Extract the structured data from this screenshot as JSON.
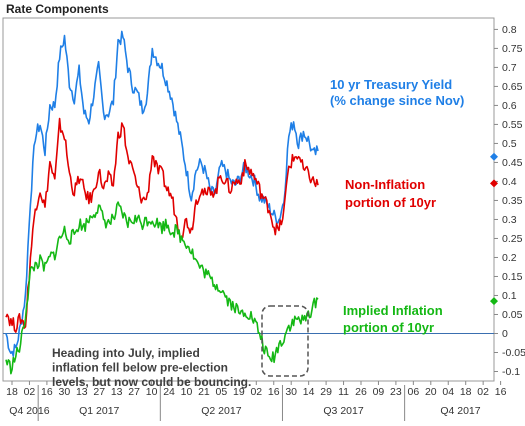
{
  "chart_data": {
    "type": "line",
    "title": "Rate Components",
    "y_ticks": [
      "0.8",
      "0.75",
      "0.7",
      "0.65",
      "0.6",
      "0.55",
      "0.5",
      "0.45",
      "0.4",
      "0.35",
      "0.3",
      "0.25",
      "0.2",
      "0.15",
      "0.1",
      "0.05",
      "0",
      "-0.05",
      "-0.1"
    ],
    "ylim": [
      -0.125,
      0.83
    ],
    "x_ticks": [
      "18",
      "02",
      "16",
      "30",
      "13",
      "27",
      "13",
      "27",
      "10",
      "24",
      "10",
      "21",
      "05",
      "19",
      "02",
      "16",
      "30",
      "14",
      "29",
      "11",
      "26",
      "09",
      "23",
      "06",
      "20",
      "04",
      "18",
      "02",
      "16"
    ],
    "periods": [
      "Q4 2016",
      "Q1 2017",
      "Q2 2017",
      "Q3 2017",
      "Q4 2017"
    ],
    "zero_line": 0,
    "series": [
      {
        "name": "10 yr Treasury Yield",
        "color": "#1f7fe6",
        "end_value": 0.465,
        "values": [
          0.0,
          -0.05,
          -0.04,
          0.02,
          0.1,
          0.35,
          0.52,
          0.55,
          0.48,
          0.6,
          0.6,
          0.73,
          0.78,
          0.66,
          0.62,
          0.69,
          0.58,
          0.56,
          0.63,
          0.7,
          0.58,
          0.58,
          0.61,
          0.77,
          0.78,
          0.7,
          0.65,
          0.63,
          0.59,
          0.63,
          0.75,
          0.72,
          0.7,
          0.66,
          0.62,
          0.56,
          0.5,
          0.43,
          0.36,
          0.43,
          0.45,
          0.42,
          0.37,
          0.37,
          0.44,
          0.43,
          0.4,
          0.39,
          0.41,
          0.44,
          0.42,
          0.4,
          0.36,
          0.35,
          0.33,
          0.31,
          0.3,
          0.35,
          0.52,
          0.56,
          0.5,
          0.53,
          0.51,
          0.47,
          0.48
        ]
      },
      {
        "name": "Non-Inflation portion of 10yr",
        "color": "#e00000",
        "end_value": 0.395,
        "values": [
          0.06,
          0.03,
          0.02,
          0.04,
          0.02,
          0.2,
          0.33,
          0.38,
          0.33,
          0.45,
          0.4,
          0.55,
          0.52,
          0.42,
          0.37,
          0.41,
          0.38,
          0.35,
          0.37,
          0.43,
          0.38,
          0.41,
          0.39,
          0.52,
          0.55,
          0.46,
          0.43,
          0.38,
          0.35,
          0.36,
          0.47,
          0.43,
          0.42,
          0.38,
          0.36,
          0.3,
          0.26,
          0.3,
          0.27,
          0.35,
          0.38,
          0.36,
          0.38,
          0.37,
          0.42,
          0.4,
          0.38,
          0.4,
          0.4,
          0.44,
          0.43,
          0.41,
          0.38,
          0.35,
          0.33,
          0.28,
          0.27,
          0.32,
          0.44,
          0.46,
          0.47,
          0.43,
          0.42,
          0.4,
          0.39
        ]
      },
      {
        "name": "Implied Inflation portion of 10yr",
        "color": "#14b814",
        "end_value": 0.085,
        "values": [
          -0.07,
          -0.09,
          -0.06,
          -0.03,
          0.05,
          0.16,
          0.18,
          0.19,
          0.17,
          0.2,
          0.21,
          0.25,
          0.27,
          0.25,
          0.26,
          0.29,
          0.28,
          0.3,
          0.32,
          0.33,
          0.3,
          0.29,
          0.3,
          0.33,
          0.31,
          0.29,
          0.3,
          0.3,
          0.29,
          0.3,
          0.3,
          0.29,
          0.28,
          0.29,
          0.27,
          0.27,
          0.25,
          0.24,
          0.22,
          0.19,
          0.17,
          0.16,
          0.14,
          0.13,
          0.12,
          0.1,
          0.08,
          0.07,
          0.05,
          0.06,
          0.05,
          0.03,
          0.0,
          -0.04,
          -0.07,
          -0.06,
          -0.03,
          -0.01,
          0.02,
          0.03,
          0.04,
          0.03,
          0.05,
          0.07,
          0.09
        ]
      }
    ],
    "annotations": [
      {
        "key": "treasury",
        "lines": [
          "10 yr Treasury Yield",
          "(% change since Nov)"
        ],
        "color": "#1f7fe6"
      },
      {
        "key": "noninfl",
        "lines": [
          "Non-Inflation",
          "portion of 10yr"
        ],
        "color": "#e00000"
      },
      {
        "key": "infl",
        "lines": [
          "Implied Inflation",
          "portion of 10yr"
        ],
        "color": "#14b814"
      },
      {
        "key": "note",
        "lines": [
          "Heading into July, implied",
          "inflation fell below pre-election",
          "levels, but now could be bouncing."
        ],
        "color": "#404040"
      }
    ]
  }
}
